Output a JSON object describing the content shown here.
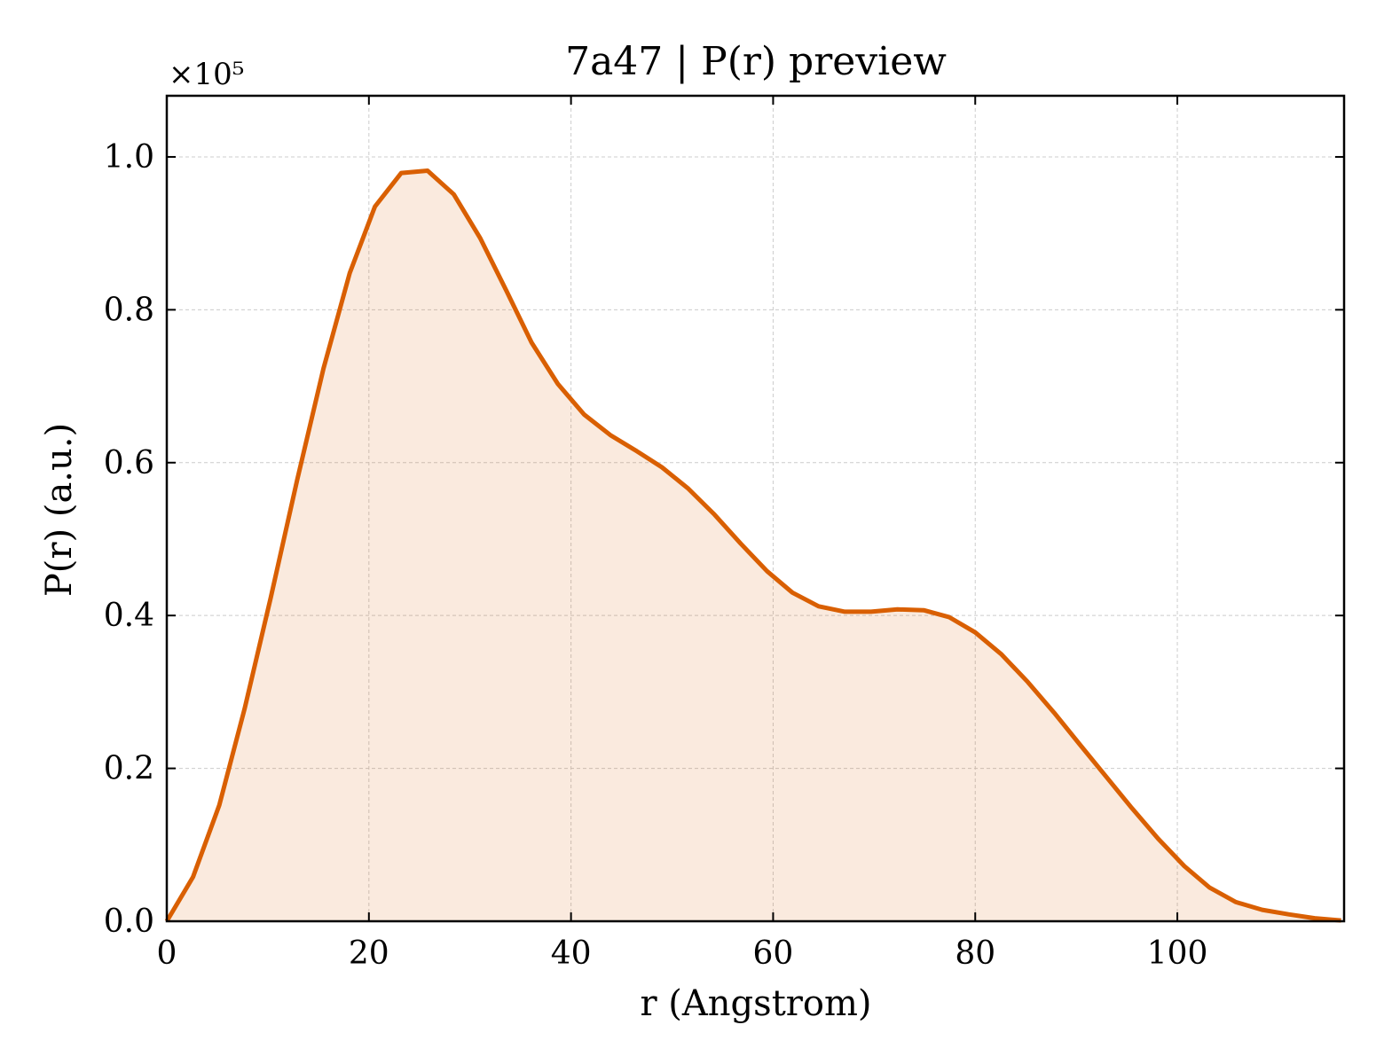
{
  "chart_data": {
    "type": "area",
    "title": "7a47 | P(r) preview",
    "xlabel": "r (Angstrom)",
    "ylabel": "P(r) (a.u.)",
    "y_multiplier_label": "×10⁵",
    "xlim": [
      0,
      116.5
    ],
    "ylim": [
      0,
      1.08
    ],
    "xticks": [
      0,
      20,
      40,
      60,
      80,
      100
    ],
    "xtick_labels": [
      "0",
      "20",
      "40",
      "60",
      "80",
      "100"
    ],
    "yticks": [
      0.0,
      0.2,
      0.4,
      0.6,
      0.8,
      1.0
    ],
    "ytick_labels": [
      "0.0",
      "0.2",
      "0.4",
      "0.6",
      "0.8",
      "1.0"
    ],
    "grid": true,
    "series": [
      {
        "color": "#d95f02",
        "fill_color": "#d95f02",
        "x": [
          0,
          2.6,
          5.2,
          7.7,
          10.3,
          12.9,
          15.5,
          18.1,
          20.6,
          23.2,
          25.8,
          28.4,
          31.0,
          33.6,
          36.1,
          38.7,
          41.3,
          43.9,
          46.5,
          49.0,
          51.6,
          54.2,
          56.8,
          59.4,
          61.9,
          64.5,
          67.1,
          69.7,
          72.3,
          74.9,
          77.4,
          80.0,
          82.6,
          85.2,
          87.8,
          90.3,
          92.9,
          95.5,
          98.1,
          100.7,
          103.2,
          105.8,
          108.4,
          111.0,
          113.6,
          116.2
        ],
        "y": [
          0.0,
          0.058,
          0.152,
          0.278,
          0.424,
          0.577,
          0.723,
          0.848,
          0.935,
          0.979,
          0.982,
          0.951,
          0.894,
          0.825,
          0.757,
          0.703,
          0.663,
          0.636,
          0.615,
          0.594,
          0.566,
          0.532,
          0.494,
          0.458,
          0.43,
          0.412,
          0.405,
          0.405,
          0.408,
          0.407,
          0.398,
          0.378,
          0.349,
          0.313,
          0.273,
          0.232,
          0.19,
          0.148,
          0.108,
          0.072,
          0.044,
          0.025,
          0.015,
          0.009,
          0.004,
          0.001
        ]
      }
    ]
  }
}
